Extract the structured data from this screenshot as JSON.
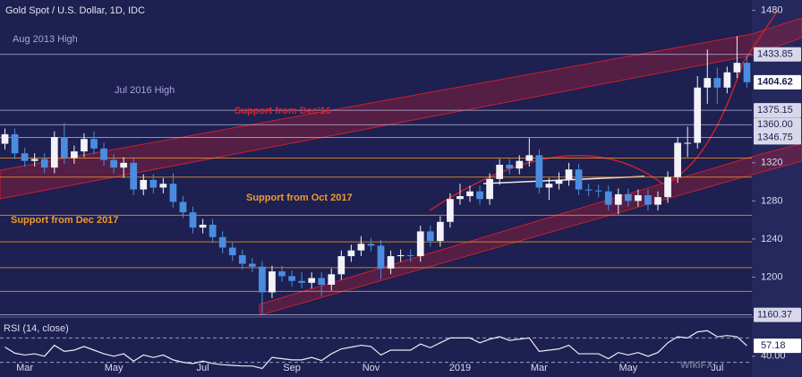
{
  "title": "Gold Spot / U.S. Dollar, 1D, IDC",
  "watermark": "WikiFX",
  "chart_data": [
    {
      "type": "candlestick",
      "categories": [
        null,
        null,
        "Mar",
        null,
        null,
        null,
        null,
        null,
        null,
        null,
        null,
        "May",
        null,
        null,
        null,
        null,
        null,
        null,
        null,
        null,
        "Jul",
        null,
        null,
        null,
        null,
        null,
        null,
        null,
        null,
        "Sep",
        null,
        null,
        null,
        null,
        null,
        null,
        null,
        "Nov",
        null,
        null,
        null,
        null,
        null,
        null,
        null,
        null,
        "2019",
        null,
        null,
        null,
        null,
        null,
        null,
        null,
        "Mar",
        null,
        null,
        null,
        null,
        null,
        null,
        null,
        null,
        "May",
        null,
        null,
        null,
        null,
        null,
        null,
        null,
        null,
        "Jul",
        null,
        null,
        null
      ],
      "open": [
        1340,
        1350,
        1330,
        1322,
        1324,
        1315,
        1347,
        1325,
        1332,
        1345,
        1335,
        1323,
        1315,
        1320,
        1292,
        1302,
        1294,
        1298,
        1279,
        1268,
        1252,
        1255,
        1242,
        1231,
        1223,
        1214,
        1211,
        1184,
        1206,
        1201,
        1196,
        1194,
        1199,
        1192,
        1203,
        1222,
        1228,
        1235,
        1233,
        1209,
        1222,
        1223,
        1222,
        1248,
        1238,
        1258,
        1282,
        1285,
        1290,
        1282,
        1303,
        1318,
        1314,
        1322,
        1328,
        1294,
        1298,
        1302,
        1313,
        1292,
        1291,
        1290,
        1276,
        1287,
        1280,
        1286,
        1276,
        1284,
        1305,
        1341,
        1341,
        1399,
        1409,
        1399,
        1415,
        1425
      ],
      "high": [
        1356,
        1356,
        1336,
        1330,
        1330,
        1353,
        1362,
        1338,
        1351,
        1353,
        1341,
        1329,
        1326,
        1326,
        1308,
        1308,
        1304,
        1309,
        1285,
        1274,
        1261,
        1261,
        1248,
        1237,
        1229,
        1220,
        1217,
        1212,
        1212,
        1207,
        1205,
        1205,
        1205,
        1209,
        1228,
        1234,
        1243,
        1241,
        1239,
        1228,
        1229,
        1229,
        1254,
        1254,
        1264,
        1288,
        1298,
        1296,
        1296,
        1309,
        1324,
        1324,
        1328,
        1346,
        1334,
        1304,
        1310,
        1320,
        1319,
        1298,
        1297,
        1296,
        1293,
        1293,
        1292,
        1292,
        1290,
        1311,
        1347,
        1358,
        1411,
        1439,
        1420,
        1421,
        1453,
        1433
      ],
      "low": [
        1334,
        1324,
        1316,
        1316,
        1309,
        1309,
        1319,
        1319,
        1326,
        1329,
        1317,
        1309,
        1304,
        1286,
        1286,
        1288,
        1288,
        1273,
        1262,
        1246,
        1246,
        1236,
        1225,
        1217,
        1208,
        1205,
        1160,
        1178,
        1195,
        1190,
        1188,
        1188,
        1180,
        1186,
        1197,
        1216,
        1222,
        1227,
        1198,
        1203,
        1216,
        1216,
        1216,
        1232,
        1232,
        1252,
        1276,
        1279,
        1276,
        1276,
        1297,
        1308,
        1308,
        1316,
        1288,
        1281,
        1292,
        1296,
        1286,
        1285,
        1284,
        1270,
        1266,
        1274,
        1274,
        1270,
        1270,
        1278,
        1299,
        1326,
        1335,
        1382,
        1382,
        1393,
        1409,
        1399
      ],
      "close": [
        1350,
        1330,
        1322,
        1324,
        1315,
        1347,
        1325,
        1332,
        1345,
        1335,
        1323,
        1315,
        1320,
        1292,
        1302,
        1294,
        1298,
        1279,
        1268,
        1252,
        1255,
        1242,
        1231,
        1223,
        1214,
        1211,
        1184,
        1206,
        1201,
        1196,
        1194,
        1199,
        1192,
        1203,
        1222,
        1228,
        1235,
        1233,
        1209,
        1222,
        1223,
        1222,
        1248,
        1238,
        1258,
        1282,
        1285,
        1290,
        1282,
        1303,
        1318,
        1314,
        1322,
        1328,
        1294,
        1298,
        1302,
        1313,
        1292,
        1291,
        1290,
        1276,
        1287,
        1280,
        1286,
        1276,
        1284,
        1305,
        1341,
        1341,
        1399,
        1409,
        1399,
        1415,
        1425,
        1404.62
      ],
      "up_color": "#f2f2f8",
      "down_color": "#4a8de0",
      "ylim": [
        1160,
        1490
      ],
      "yticks": [
        1200,
        1240,
        1280,
        1320,
        1480
      ],
      "levels": [
        1433.85,
        1375.15,
        {
          "value": 1360,
          "label": "1360.00"
        },
        1346.75,
        1160.37
      ],
      "supports": [
        1325,
        1305,
        1265,
        1237,
        1210,
        1185
      ],
      "annotations": [
        {
          "text": "Aug 2013 High",
          "color": "#a9a3de"
        },
        {
          "text": "Jul 2016 High",
          "color": "#a9a3de"
        },
        {
          "text": "Support from Dec'16",
          "color": "#e0222e"
        },
        {
          "text": "Support from Oct 2017",
          "color": "#f09a30"
        },
        {
          "text": "Support from Dec 2017",
          "color": "#f09a30"
        }
      ]
    },
    {
      "type": "line",
      "title": "RSI (14, close)",
      "series": [
        {
          "name": "RSI",
          "color": "#ececf4",
          "values": [
            55,
            45,
            42,
            44,
            40,
            58,
            48,
            50,
            56,
            50,
            44,
            40,
            44,
            32,
            42,
            38,
            42,
            34,
            30,
            28,
            32,
            28,
            26,
            25,
            24,
            24,
            20,
            38,
            36,
            34,
            34,
            38,
            33,
            44,
            52,
            55,
            58,
            56,
            42,
            50,
            50,
            50,
            60,
            54,
            62,
            70,
            70,
            70,
            62,
            68,
            72,
            66,
            68,
            70,
            48,
            50,
            52,
            58,
            44,
            44,
            44,
            36,
            46,
            42,
            46,
            40,
            46,
            62,
            72,
            70,
            80,
            82,
            72,
            74,
            72,
            57.18
          ]
        }
      ],
      "ylim": [
        0,
        100
      ],
      "yticks": [
        {
          "value": 40,
          "label": "40.00"
        }
      ],
      "levels": [
        70,
        30
      ]
    }
  ]
}
